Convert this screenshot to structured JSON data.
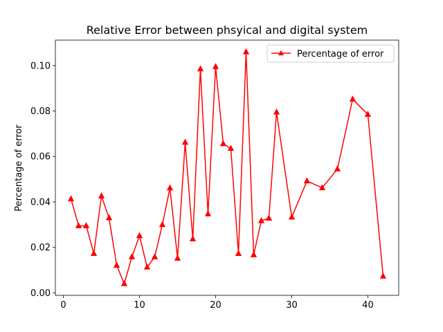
{
  "chart_data": {
    "type": "line",
    "title": "Relative Error between phsyical and digital system",
    "xlabel": "",
    "ylabel": "Percentage of error",
    "xlim": [
      -1.05,
      44.05
    ],
    "ylim": [
      -0.0011,
      0.1112
    ],
    "xticks": [
      0,
      10,
      20,
      30,
      40
    ],
    "xtick_labels": [
      "0",
      "10",
      "20",
      "30",
      "40"
    ],
    "yticks": [
      0.0,
      0.02,
      0.04,
      0.06,
      0.08,
      0.1
    ],
    "ytick_labels": [
      "0.00",
      "0.02",
      "0.04",
      "0.06",
      "0.08",
      "0.10"
    ],
    "grid": false,
    "legend_position": "upper right",
    "series": [
      {
        "name": "Percentage of error",
        "color": "#ff0000",
        "marker": "triangle-up",
        "x": [
          1,
          2,
          3,
          4,
          5,
          6,
          7,
          8,
          9,
          10,
          11,
          12,
          13,
          14,
          15,
          16,
          17,
          18,
          19,
          20,
          21,
          22,
          23,
          24,
          25,
          26,
          27,
          28,
          30,
          32,
          34,
          36,
          38,
          40,
          42
        ],
        "y": [
          0.0413,
          0.0295,
          0.0295,
          0.0173,
          0.0426,
          0.033,
          0.0121,
          0.004,
          0.0158,
          0.0251,
          0.0113,
          0.0158,
          0.03,
          0.0461,
          0.0152,
          0.0662,
          0.0237,
          0.0985,
          0.0347,
          0.0995,
          0.0656,
          0.0635,
          0.0173,
          0.106,
          0.0167,
          0.0317,
          0.0328,
          0.0795,
          0.0333,
          0.0492,
          0.0462,
          0.0545,
          0.0852,
          0.0785,
          0.0073
        ]
      }
    ]
  }
}
